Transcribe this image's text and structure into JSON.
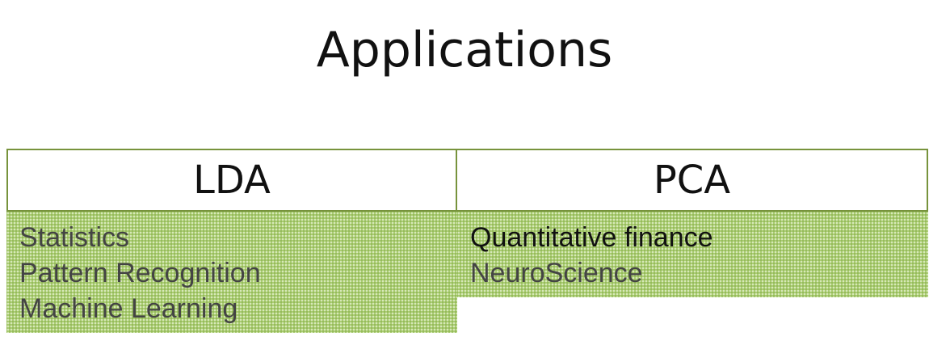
{
  "slide": {
    "title": "Applications"
  },
  "table": {
    "columns": [
      {
        "header": "LDA",
        "items": [
          "Statistics",
          "Pattern Recognition",
          "Machine Learning"
        ]
      },
      {
        "header": "PCA",
        "items": [
          "Quantitative finance",
          "NeuroScience"
        ]
      }
    ]
  },
  "colors": {
    "border": "#77933c",
    "cell_fill": "#a9cc6d"
  }
}
